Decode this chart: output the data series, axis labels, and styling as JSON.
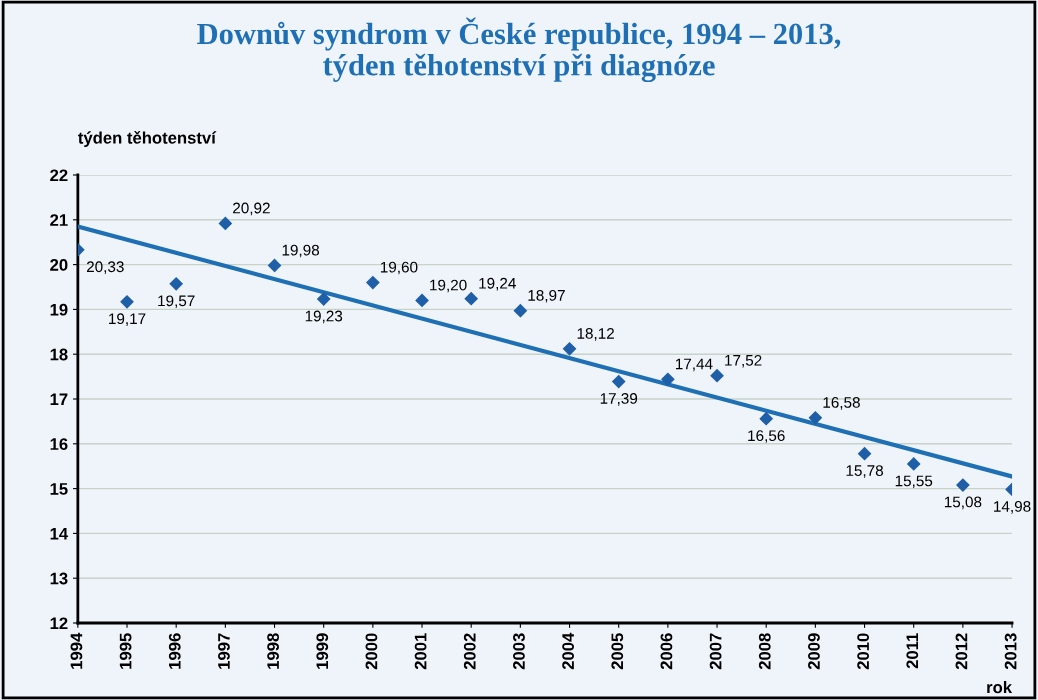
{
  "chart_data": {
    "type": "scatter",
    "title": "Downův syndrom v České republice, 1994 – 2013,\ntýden těhotenství při diagnóze",
    "xlabel": "rok",
    "ylabel": "týden těhotenství",
    "x": [
      1994,
      1995,
      1996,
      1997,
      1998,
      1999,
      2000,
      2001,
      2002,
      2003,
      2004,
      2005,
      2006,
      2007,
      2008,
      2009,
      2010,
      2011,
      2012,
      2013
    ],
    "series": [
      {
        "color": "#1f5fa8",
        "marker": "diamond",
        "values": [
          20.33,
          19.17,
          19.57,
          20.92,
          19.98,
          19.23,
          19.6,
          19.2,
          19.24,
          18.97,
          18.12,
          17.39,
          17.44,
          17.52,
          16.56,
          16.58,
          15.78,
          15.55,
          15.08,
          14.98
        ],
        "value_labels": [
          "20,33",
          "19,17",
          "19,57",
          "20,92",
          "19,98",
          "19,23",
          "19,60",
          "19,20",
          "19,24",
          "18,97",
          "18,12",
          "17,39",
          "17,44",
          "17,52",
          "16,56",
          "16,58",
          "15,78",
          "15,55",
          "15,08",
          "14,98"
        ]
      },
      {
        "type": "line",
        "color": "#1f6fb5",
        "x": [
          1994,
          2013
        ],
        "values": [
          20.85,
          15.27
        ]
      }
    ],
    "xlim": [
      1994,
      2013
    ],
    "xticks": [
      1994,
      1995,
      1996,
      1997,
      1998,
      1999,
      2000,
      2001,
      2002,
      2003,
      2004,
      2005,
      2006,
      2007,
      2008,
      2009,
      2010,
      2011,
      2012,
      2013
    ],
    "ylim": [
      12,
      22
    ],
    "yticks": [
      12,
      13,
      14,
      15,
      16,
      17,
      18,
      19,
      20,
      21,
      22
    ],
    "grid": "y",
    "legend": false
  }
}
